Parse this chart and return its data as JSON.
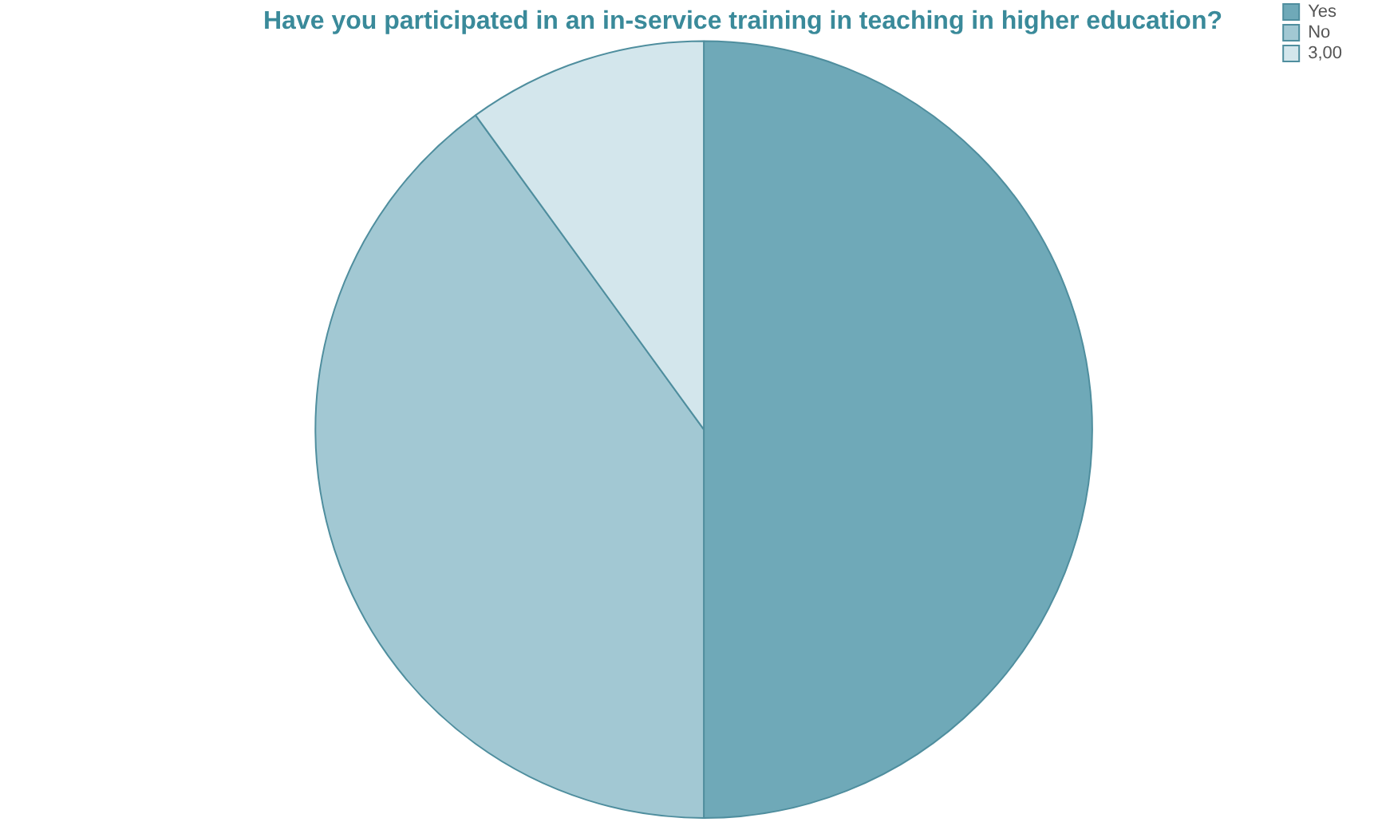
{
  "chart_data": {
    "type": "pie",
    "title": "Have you participated in an in-service training in teaching in higher education?",
    "categories": [
      "Yes",
      "No",
      "3,00"
    ],
    "values": [
      50,
      40,
      10
    ],
    "colors": [
      "#6fa9b8",
      "#a2c8d3",
      "#d3e6ec"
    ],
    "legend": "top right"
  }
}
